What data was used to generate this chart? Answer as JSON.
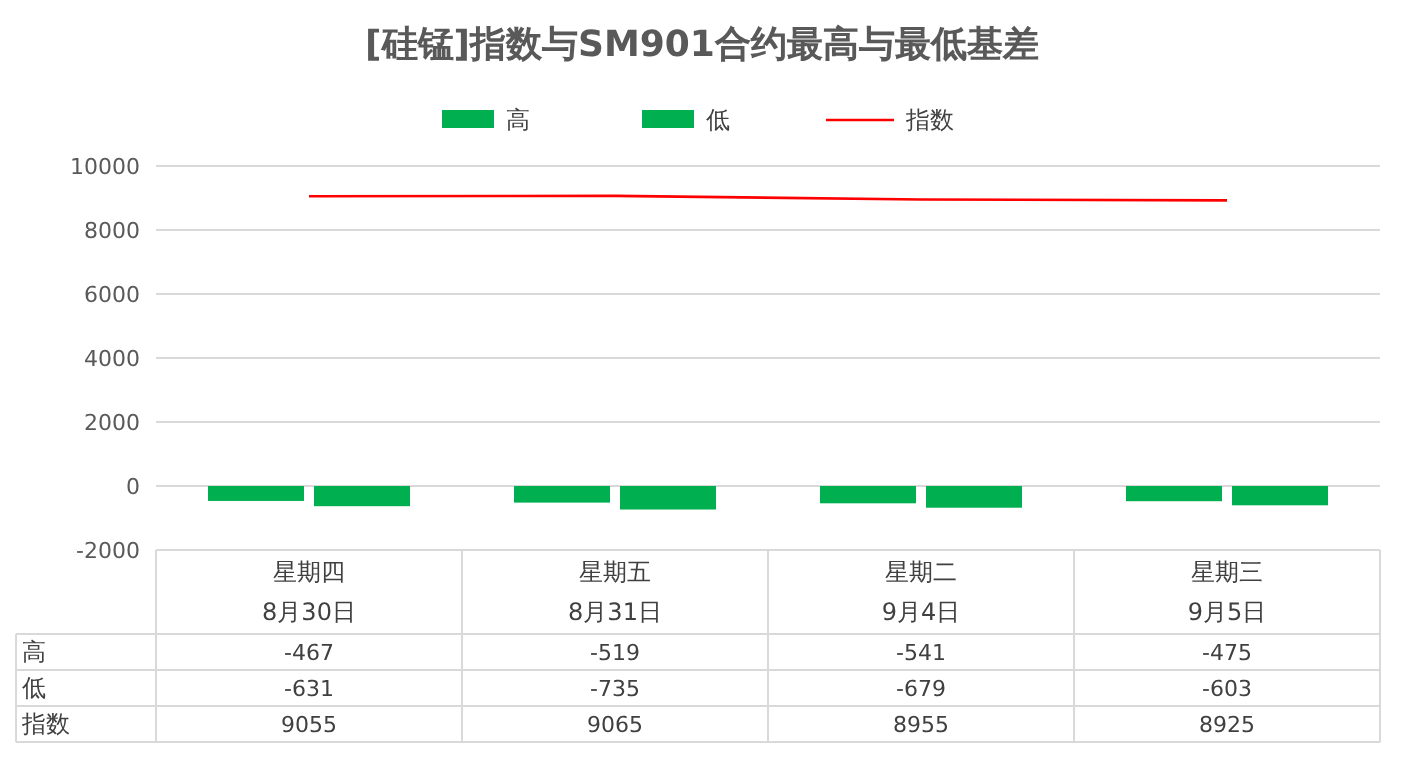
{
  "chart_data": {
    "type": "bar",
    "title": "[硅锰]指数与SM901合约最高与最低基差",
    "categories": [
      "星期四\n8月30日",
      "星期五\n8月31日",
      "星期二\n9月4日",
      "星期三\n9月5日"
    ],
    "series": [
      {
        "name": "高",
        "color": "#00b050",
        "values": [
          -467,
          -519,
          -541,
          -475
        ]
      },
      {
        "name": "低",
        "color": "#00b050",
        "values": [
          -631,
          -735,
          -679,
          -603
        ]
      },
      {
        "name": "指数",
        "color": "#ff0000",
        "type": "line",
        "values": [
          9055,
          9065,
          8955,
          8925
        ]
      }
    ],
    "ylim": [
      -2000,
      10000
    ],
    "yticks": [
      -2000,
      0,
      2000,
      4000,
      6000,
      8000,
      10000
    ],
    "grid": "y",
    "legend": "top",
    "data_labels": true,
    "marker": "none"
  }
}
